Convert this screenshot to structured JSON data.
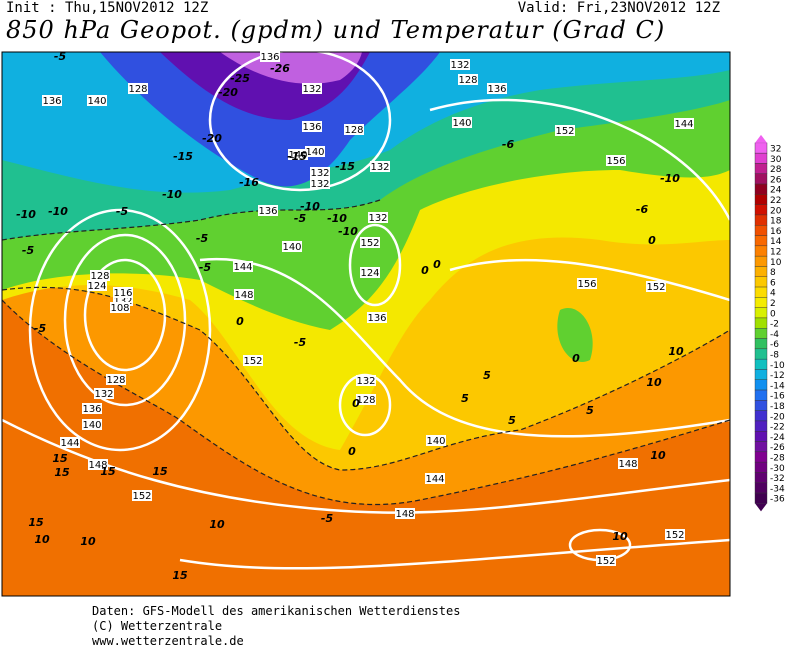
{
  "header": {
    "init": "Init : Thu,15NOV2012 12Z",
    "valid": "Valid: Fri,23NOV2012 12Z",
    "title": "850 hPa Geopot. (gpdm) und Temperatur (Grad C)"
  },
  "colorbar": {
    "levels": [
      32,
      30,
      28,
      26,
      24,
      22,
      20,
      18,
      16,
      14,
      12,
      10,
      8,
      6,
      4,
      2,
      0,
      -2,
      -4,
      -6,
      -8,
      -10,
      -12,
      -14,
      -16,
      -18,
      -20,
      -22,
      -24,
      -26,
      -28,
      -30,
      -32,
      -34,
      -36
    ],
    "colors": [
      "#f060f0",
      "#e040d0",
      "#c02090",
      "#a01060",
      "#900020",
      "#b00000",
      "#d01000",
      "#e03000",
      "#f05000",
      "#f86800",
      "#fc8000",
      "#fc9800",
      "#fcb000",
      "#fcc800",
      "#fcdc00",
      "#f4ec00",
      "#d8f000",
      "#a0e000",
      "#60d030",
      "#30c060",
      "#20c090",
      "#10c0c0",
      "#10b0e0",
      "#1090f0",
      "#2070f0",
      "#3050e0",
      "#4030d0",
      "#5020c0",
      "#6010b0",
      "#7010a0",
      "#800090",
      "#700080",
      "#600070",
      "#500060",
      "#400050"
    ]
  },
  "geopotential_labels": [
    136,
    140,
    128,
    132,
    136,
    140,
    132,
    132,
    128,
    132,
    140,
    136,
    140,
    152,
    156,
    144,
    136,
    132,
    128,
    124,
    132,
    136,
    140,
    144,
    148,
    152,
    128,
    124,
    132,
    116,
    108,
    128,
    132,
    136,
    140,
    144,
    148,
    152,
    152,
    132,
    128,
    136,
    140,
    144,
    148,
    156,
    152,
    148,
    152,
    152
  ],
  "temperature_labels": [
    -5,
    -25,
    -26,
    -20,
    -20,
    -15,
    -16,
    -10,
    -10,
    -15,
    -10,
    -5,
    -10,
    -10,
    -5,
    -5,
    -10,
    -6,
    -5,
    -5,
    0,
    0,
    0,
    -5,
    -5,
    0,
    5,
    5,
    10,
    10,
    10,
    15,
    15,
    15,
    15,
    15,
    10,
    5,
    0,
    10,
    10,
    10,
    15,
    5,
    -5,
    0,
    -15,
    -6,
    -10,
    0
  ],
  "footer": [
    "Daten: GFS-Modell des amerikanischen Wetterdienstes",
    "(C) Wetterzentrale",
    "www.wetterzentrale.de"
  ]
}
